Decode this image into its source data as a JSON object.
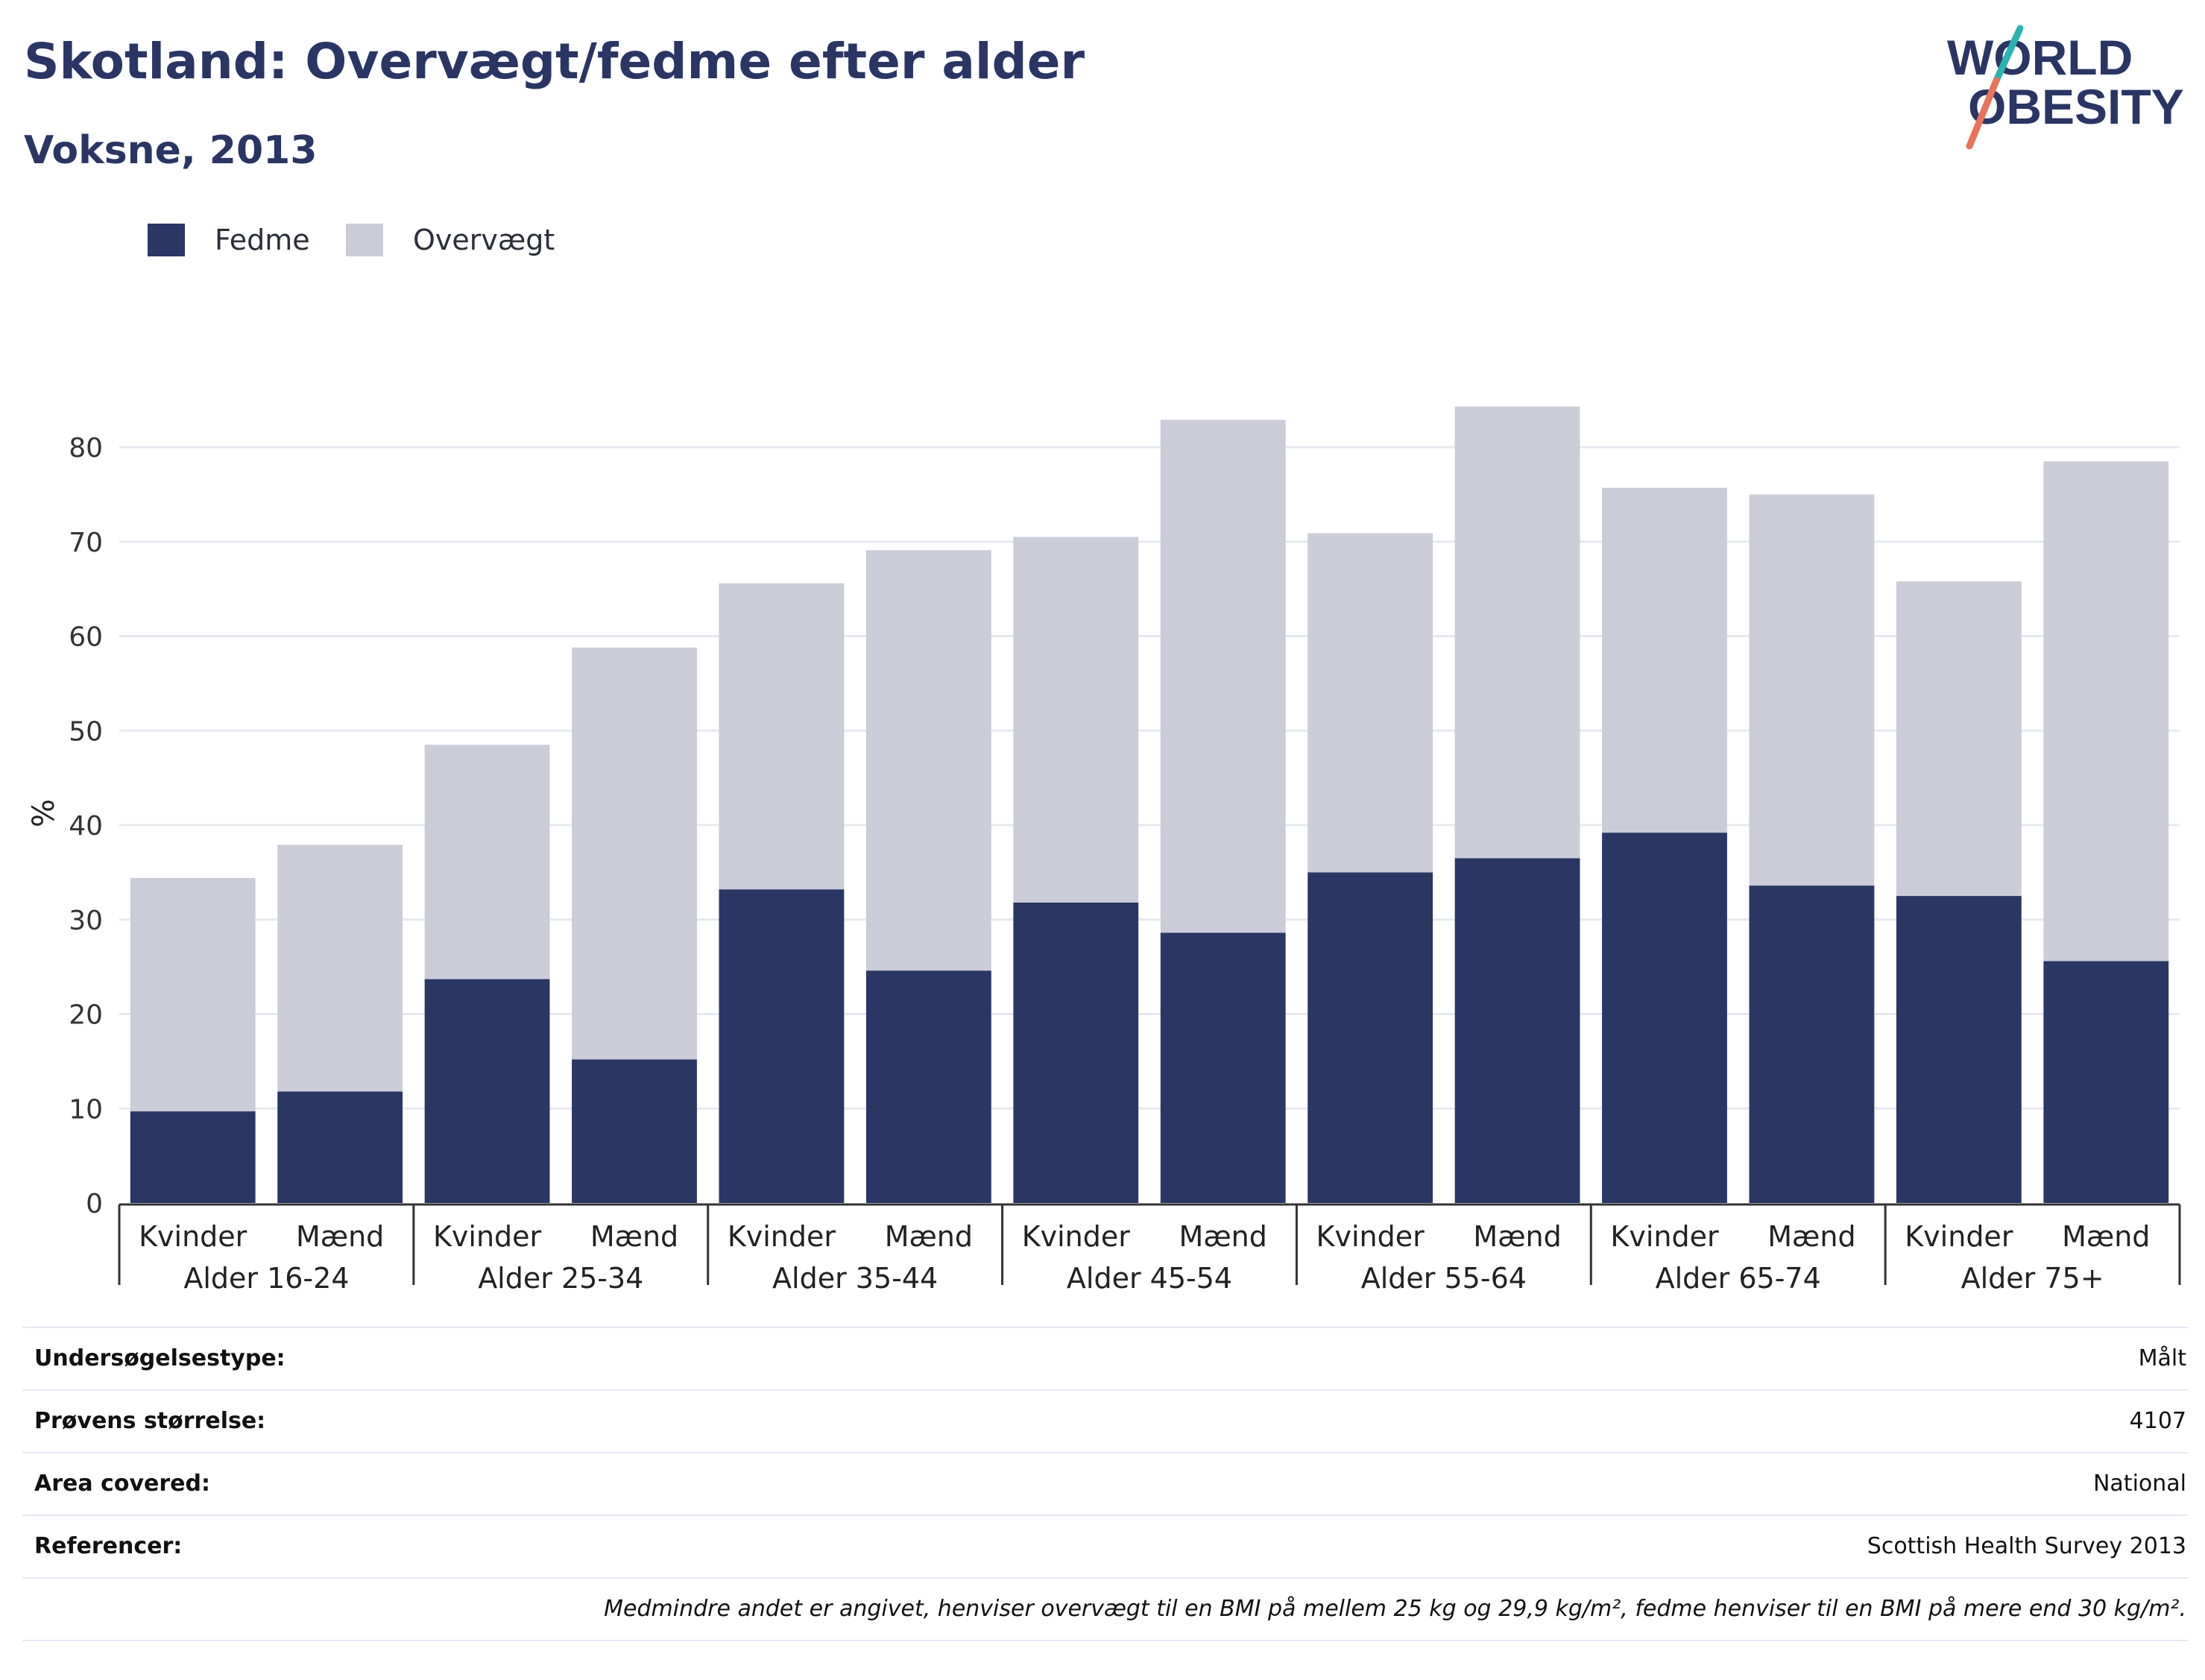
{
  "header": {
    "title": "Skotland: Overvægt/fedme efter alder",
    "subtitle": "Voksne, 2013",
    "logo_line1": "WORLD",
    "logo_line2": "OBESITY"
  },
  "legend": [
    {
      "label": "Fedme",
      "color": "#2a3664"
    },
    {
      "label": "Overvægt",
      "color": "#cbccd8"
    }
  ],
  "chart_data": {
    "type": "bar",
    "stacked": true,
    "title": "",
    "ylabel": "%",
    "xlabel": "",
    "ylim": [
      0,
      87
    ],
    "yticks": [
      0,
      10,
      20,
      30,
      40,
      50,
      60,
      70,
      80
    ],
    "grid": true,
    "legend_position": "top-left",
    "groups": [
      "Alder 16-24",
      "Alder 25-34",
      "Alder 35-44",
      "Alder 45-54",
      "Alder 55-64",
      "Alder 65-74",
      "Alder 75+"
    ],
    "sub_categories": [
      "Kvinder",
      "Mænd"
    ],
    "series": [
      {
        "name": "Fedme",
        "color": "#2a3664",
        "values": [
          9.7,
          11.8,
          23.7,
          15.2,
          33.2,
          24.6,
          31.8,
          28.6,
          35.0,
          36.5,
          39.2,
          33.6,
          32.5,
          25.6
        ]
      },
      {
        "name": "Overvægt",
        "color": "#cbccd8",
        "values": [
          24.7,
          26.1,
          24.8,
          43.6,
          32.4,
          44.5,
          38.7,
          54.3,
          35.9,
          47.8,
          36.5,
          41.4,
          33.3,
          52.9
        ]
      }
    ]
  },
  "info_table": [
    {
      "key": "Undersøgelsestype:",
      "value": "Målt"
    },
    {
      "key": "Prøvens størrelse:",
      "value": "4107"
    },
    {
      "key": "Area covered:",
      "value": "National"
    },
    {
      "key": "Referencer:",
      "value": "Scottish Health Survey 2013"
    }
  ],
  "footnote": "Medmindre andet er angivet, henviser overvægt til en BMI på mellem 25 kg og 29,9 kg/m², fedme henviser til en BMI på mere end 30 kg/m²."
}
